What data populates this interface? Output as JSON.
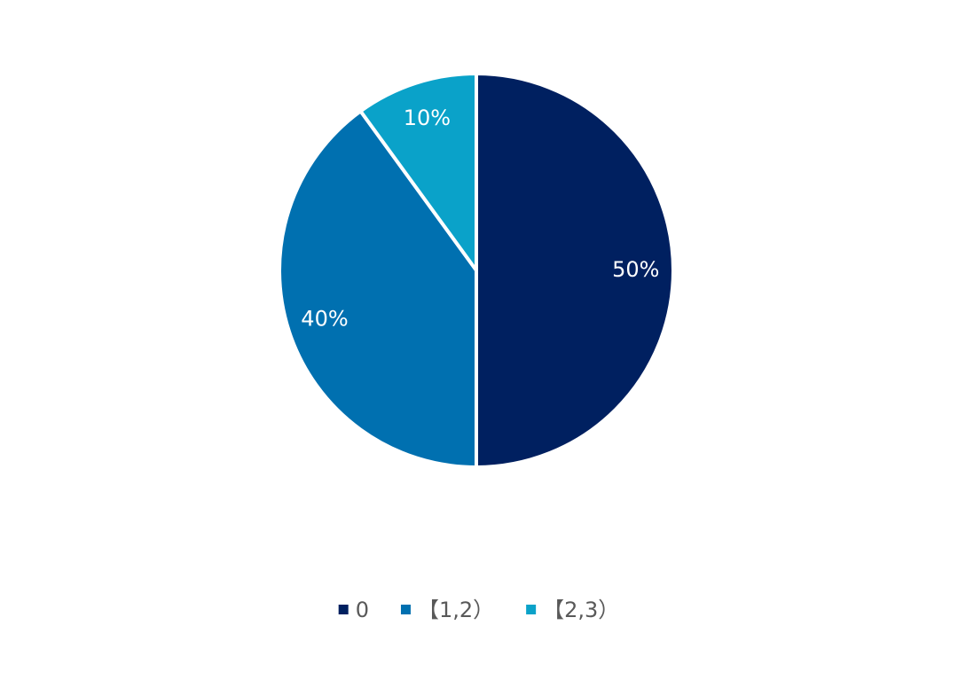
{
  "chart_data": {
    "type": "pie",
    "categories": [
      "0",
      "【1,2）",
      "【2,3）"
    ],
    "values": [
      50,
      40,
      10
    ],
    "value_labels": [
      "50%",
      "40%",
      "10%"
    ],
    "colors": [
      "#002060",
      "#0070b0",
      "#0aa2c9"
    ]
  }
}
